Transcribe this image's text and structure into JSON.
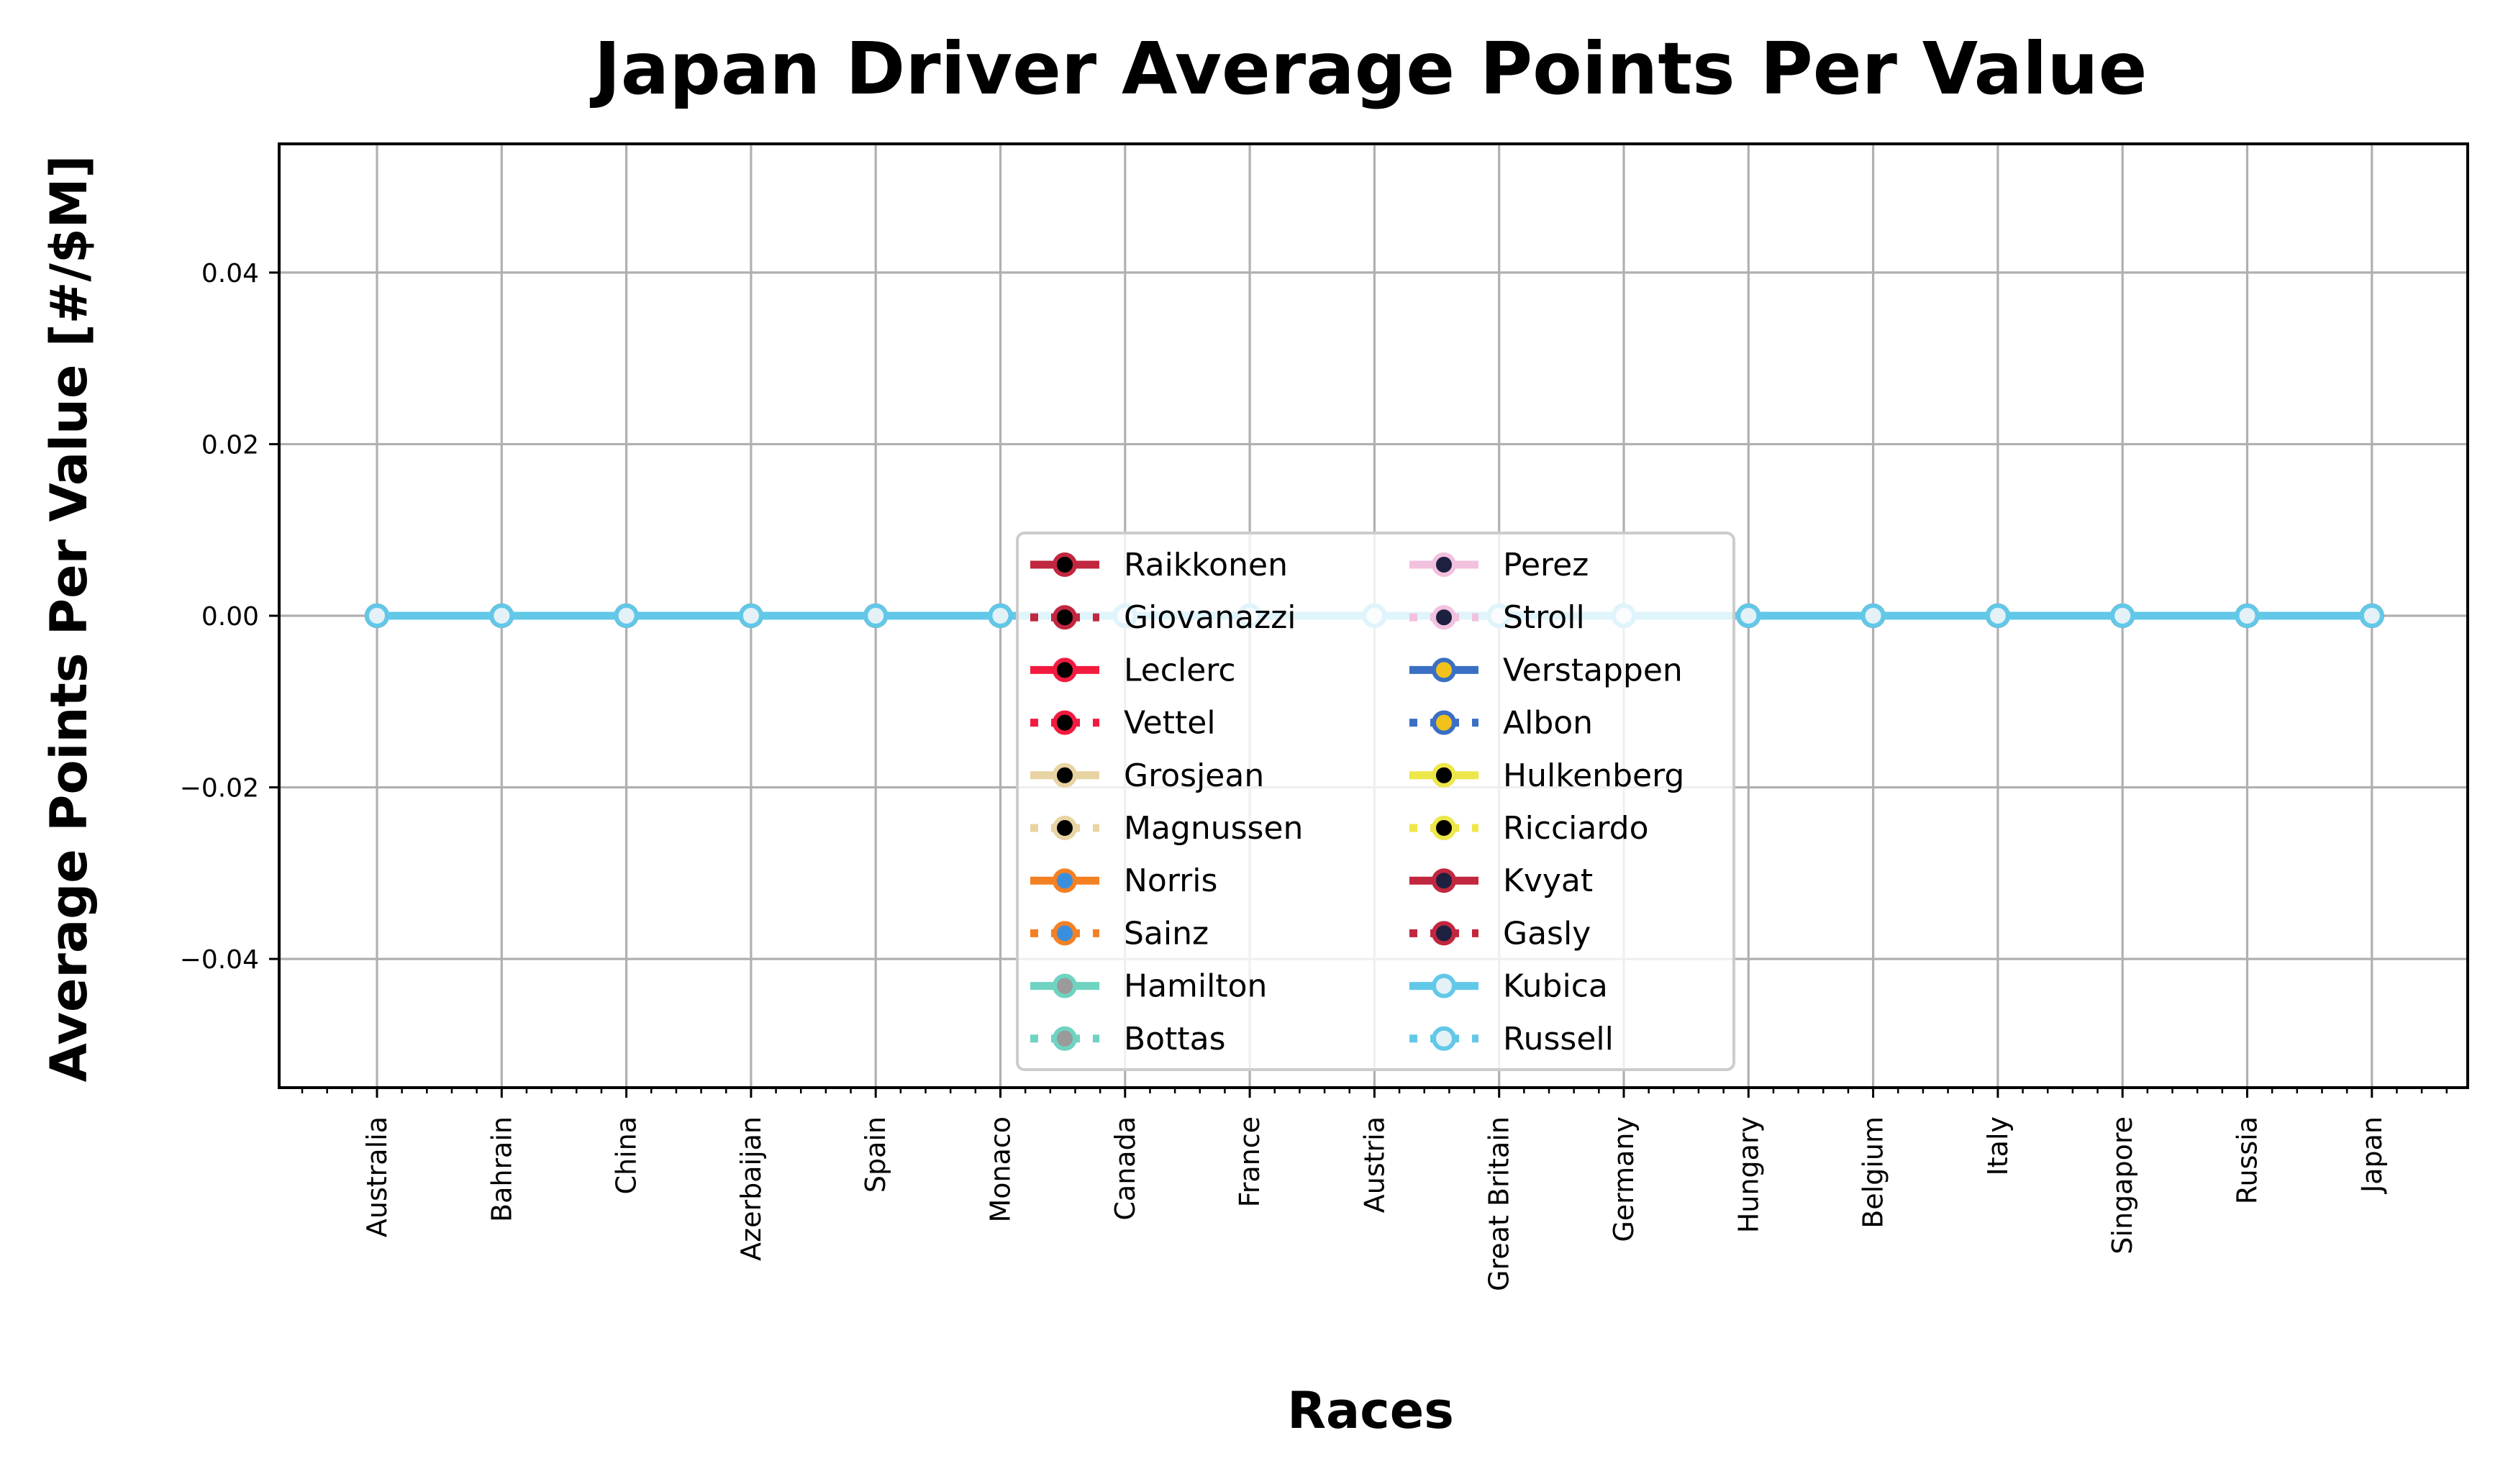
{
  "chart_data": {
    "type": "line",
    "title": "Japan Driver Average Points Per Value",
    "xlabel": "Races",
    "ylabel": "Average Points Per Value [#/$M]",
    "categories": [
      "Australia",
      "Bahrain",
      "China",
      "Azerbaijan",
      "Spain",
      "Monaco",
      "Canada",
      "France",
      "Austria",
      "Great Britain",
      "Germany",
      "Hungary",
      "Belgium",
      "Italy",
      "Singapore",
      "Russia",
      "Japan"
    ],
    "ylim": [
      -0.055,
      0.055
    ],
    "yticks": [
      0.04,
      0.02,
      0.0,
      -0.02,
      -0.04
    ],
    "ytick_labels": [
      "0.04",
      "0.02",
      "0.00",
      "−0.02",
      "−0.04"
    ],
    "grid": true,
    "legend_position": "lower-center",
    "legend_columns": 2,
    "series": [
      {
        "name": "Raikkonen",
        "color": "#c1273f",
        "marker_face": "#000000",
        "linestyle": "solid",
        "values": [
          0,
          0,
          0,
          0,
          0,
          0,
          0,
          0,
          0,
          0,
          0,
          0,
          0,
          0,
          0,
          0,
          0
        ]
      },
      {
        "name": "Giovanazzi",
        "color": "#c1273f",
        "marker_face": "#000000",
        "linestyle": "dotted",
        "values": [
          0,
          0,
          0,
          0,
          0,
          0,
          0,
          0,
          0,
          0,
          0,
          0,
          0,
          0,
          0,
          0,
          0
        ]
      },
      {
        "name": "Leclerc",
        "color": "#f21b3f",
        "marker_face": "#000000",
        "linestyle": "solid",
        "values": [
          0,
          0,
          0,
          0,
          0,
          0,
          0,
          0,
          0,
          0,
          0,
          0,
          0,
          0,
          0,
          0,
          0
        ]
      },
      {
        "name": "Vettel",
        "color": "#f21b3f",
        "marker_face": "#000000",
        "linestyle": "dotted",
        "values": [
          0,
          0,
          0,
          0,
          0,
          0,
          0,
          0,
          0,
          0,
          0,
          0,
          0,
          0,
          0,
          0,
          0
        ]
      },
      {
        "name": "Grosjean",
        "color": "#e8d4a2",
        "marker_face": "#000000",
        "linestyle": "solid",
        "values": [
          0,
          0,
          0,
          0,
          0,
          0,
          0,
          0,
          0,
          0,
          0,
          0,
          0,
          0,
          0,
          0,
          0
        ]
      },
      {
        "name": "Magnussen",
        "color": "#e8d4a2",
        "marker_face": "#000000",
        "linestyle": "dotted",
        "values": [
          0,
          0,
          0,
          0,
          0,
          0,
          0,
          0,
          0,
          0,
          0,
          0,
          0,
          0,
          0,
          0,
          0
        ]
      },
      {
        "name": "Norris",
        "color": "#f48024",
        "marker_face": "#3a8fdc",
        "linestyle": "solid",
        "values": [
          0,
          0,
          0,
          0,
          0,
          0,
          0,
          0,
          0,
          0,
          0,
          0,
          0,
          0,
          0,
          0,
          0
        ]
      },
      {
        "name": "Sainz",
        "color": "#f48024",
        "marker_face": "#3a8fdc",
        "linestyle": "dotted",
        "values": [
          0,
          0,
          0,
          0,
          0,
          0,
          0,
          0,
          0,
          0,
          0,
          0,
          0,
          0,
          0,
          0,
          0
        ]
      },
      {
        "name": "Hamilton",
        "color": "#6fd3c1",
        "marker_face": "#9a9a9a",
        "linestyle": "solid",
        "values": [
          0,
          0,
          0,
          0,
          0,
          0,
          0,
          0,
          0,
          0,
          0,
          0,
          0,
          0,
          0,
          0,
          0
        ]
      },
      {
        "name": "Bottas",
        "color": "#6fd3c1",
        "marker_face": "#9a9a9a",
        "linestyle": "dotted",
        "values": [
          0,
          0,
          0,
          0,
          0,
          0,
          0,
          0,
          0,
          0,
          0,
          0,
          0,
          0,
          0,
          0,
          0
        ]
      },
      {
        "name": "Perez",
        "color": "#f2c1dd",
        "marker_face": "#1e2040",
        "linestyle": "solid",
        "values": [
          0,
          0,
          0,
          0,
          0,
          0,
          0,
          0,
          0,
          0,
          0,
          0,
          0,
          0,
          0,
          0,
          0
        ]
      },
      {
        "name": "Stroll",
        "color": "#f2c1dd",
        "marker_face": "#1e2040",
        "linestyle": "dotted",
        "values": [
          0,
          0,
          0,
          0,
          0,
          0,
          0,
          0,
          0,
          0,
          0,
          0,
          0,
          0,
          0,
          0,
          0
        ]
      },
      {
        "name": "Verstappen",
        "color": "#3a6fc4",
        "marker_face": "#f2c21a",
        "linestyle": "solid",
        "values": [
          0,
          0,
          0,
          0,
          0,
          0,
          0,
          0,
          0,
          0,
          0,
          0,
          0,
          0,
          0,
          0,
          0
        ]
      },
      {
        "name": "Albon",
        "color": "#3a6fc4",
        "marker_face": "#f2c21a",
        "linestyle": "dotted",
        "values": [
          0,
          0,
          0,
          0,
          0,
          0,
          0,
          0,
          0,
          0,
          0,
          0,
          0,
          0,
          0,
          0,
          0
        ]
      },
      {
        "name": "Hulkenberg",
        "color": "#ede74a",
        "marker_face": "#000000",
        "linestyle": "solid",
        "values": [
          0,
          0,
          0,
          0,
          0,
          0,
          0,
          0,
          0,
          0,
          0,
          0,
          0,
          0,
          0,
          0,
          0
        ]
      },
      {
        "name": "Ricciardo",
        "color": "#ede74a",
        "marker_face": "#000000",
        "linestyle": "dotted",
        "values": [
          0,
          0,
          0,
          0,
          0,
          0,
          0,
          0,
          0,
          0,
          0,
          0,
          0,
          0,
          0,
          0,
          0
        ]
      },
      {
        "name": "Kvyat",
        "color": "#c1273f",
        "marker_face": "#1e2040",
        "linestyle": "solid",
        "values": [
          0,
          0,
          0,
          0,
          0,
          0,
          0,
          0,
          0,
          0,
          0,
          0,
          0,
          0,
          0,
          0,
          0
        ]
      },
      {
        "name": "Gasly",
        "color": "#c1273f",
        "marker_face": "#1e2040",
        "linestyle": "dotted",
        "values": [
          0,
          0,
          0,
          0,
          0,
          0,
          0,
          0,
          0,
          0,
          0,
          0,
          0,
          0,
          0,
          0,
          0
        ]
      },
      {
        "name": "Kubica",
        "color": "#62c8e8",
        "marker_face": "#e4f1f7",
        "linestyle": "solid",
        "values": [
          0,
          0,
          0,
          0,
          0,
          0,
          0,
          0,
          0,
          0,
          0,
          0,
          0,
          0,
          0,
          0,
          0
        ]
      },
      {
        "name": "Russell",
        "color": "#62c8e8",
        "marker_face": "#e4f1f7",
        "linestyle": "dotted",
        "values": [
          0,
          0,
          0,
          0,
          0,
          0,
          0,
          0,
          0,
          0,
          0,
          0,
          0,
          0,
          0,
          0,
          0
        ]
      }
    ]
  }
}
